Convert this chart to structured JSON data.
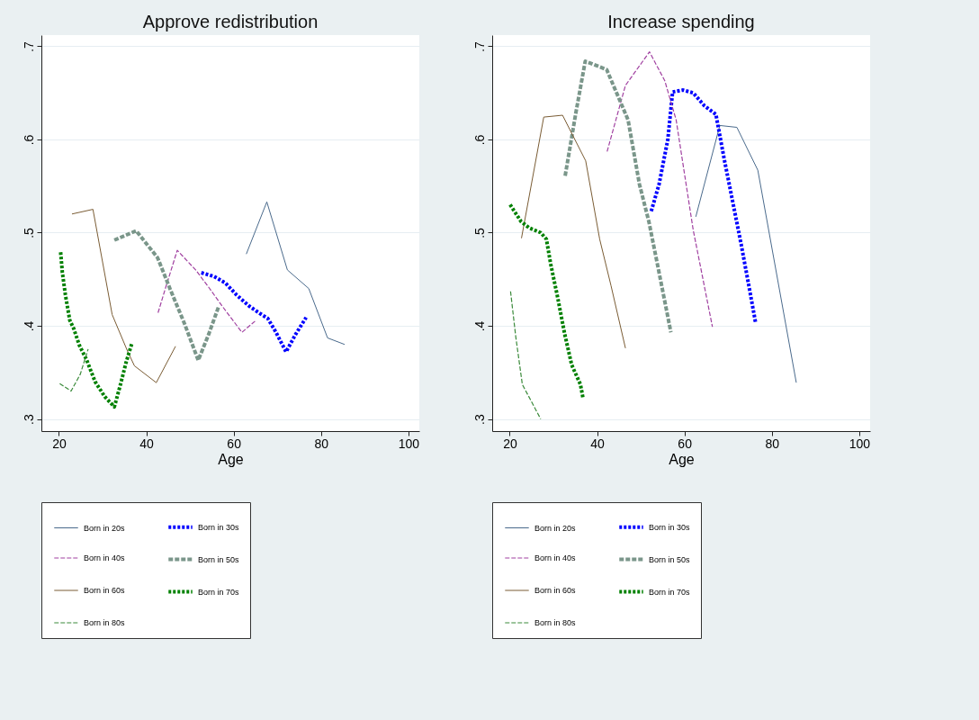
{
  "chart_data": [
    {
      "type": "line",
      "title": "Approve redistribution",
      "xlabel": "Age",
      "xlim": [
        16,
        102.5
      ],
      "xticks": [
        20,
        40,
        60,
        80,
        100
      ],
      "ylim": [
        0.287,
        0.712
      ],
      "yticks": [
        {
          "value": 0.3,
          "label": ".3"
        },
        {
          "value": 0.4,
          "label": ".4"
        },
        {
          "value": 0.5,
          "label": ".5"
        },
        {
          "value": 0.6,
          "label": ".6"
        },
        {
          "value": 0.7,
          "label": ".7"
        }
      ],
      "grid": "y",
      "legend": "bottom",
      "series": [
        {
          "name": "Born in 20s",
          "color": "#4a6a8c",
          "line_style": "solid",
          "x": [
            62.9,
            67.6,
            72.3,
            77.2,
            81.5,
            85.4
          ],
          "values": [
            0.477,
            0.533,
            0.46,
            0.44,
            0.387,
            0.38
          ]
        },
        {
          "name": "Born in 30s",
          "color": "#0000ff",
          "line_style": "dotted",
          "x": [
            52.6,
            55.5,
            58.1,
            60.7,
            63.6,
            66.1,
            67.8,
            69.7,
            72.0,
            74.2,
            76.6
          ],
          "values": [
            0.457,
            0.453,
            0.446,
            0.433,
            0.421,
            0.413,
            0.408,
            0.393,
            0.372,
            0.391,
            0.409
          ]
        },
        {
          "name": "Born in 40s",
          "color": "#a040a0",
          "line_style": "dashed",
          "x": [
            42.7,
            44.5,
            47.1,
            51.3,
            54.2,
            57.4,
            61.9,
            64.9
          ],
          "values": [
            0.414,
            0.442,
            0.481,
            0.46,
            0.442,
            0.421,
            0.393,
            0.405
          ]
        },
        {
          "name": "Born in 50s",
          "color": "#7a968a",
          "line_style": "dashed",
          "x": [
            32.7,
            37.7,
            42.6,
            45.5,
            48.7,
            51.9,
            54.3,
            56.6
          ],
          "values": [
            0.492,
            0.502,
            0.473,
            0.439,
            0.403,
            0.363,
            0.391,
            0.421
          ]
        },
        {
          "name": "Born in 60s",
          "color": "#7a5c34",
          "line_style": "solid",
          "x": [
            23.0,
            27.8,
            32.2,
            35.7,
            37.3,
            42.3,
            46.7
          ],
          "values": [
            0.52,
            0.525,
            0.412,
            0.373,
            0.357,
            0.339,
            0.378
          ]
        },
        {
          "name": "Born in 70s",
          "color": "#008000",
          "line_style": "dotted",
          "x": [
            20.4,
            20.8,
            21.5,
            22.5,
            23.4,
            24.7,
            26.3,
            28.3,
            30.5,
            32.7,
            34.1,
            35.4,
            36.7
          ],
          "values": [
            0.479,
            0.457,
            0.433,
            0.406,
            0.397,
            0.379,
            0.364,
            0.34,
            0.324,
            0.313,
            0.337,
            0.361,
            0.381
          ]
        },
        {
          "name": "Born in 80s",
          "color": "#3a8a3a",
          "line_style": "dashed",
          "x": [
            20.2,
            22.8,
            24.9,
            26.7
          ],
          "values": [
            0.338,
            0.33,
            0.348,
            0.375
          ]
        }
      ]
    },
    {
      "type": "line",
      "title": "Increase spending",
      "xlabel": "Age",
      "xlim": [
        16,
        102.5
      ],
      "xticks": [
        20,
        40,
        60,
        80,
        100
      ],
      "ylim": [
        0.287,
        0.712
      ],
      "yticks": [
        {
          "value": 0.3,
          "label": ".3"
        },
        {
          "value": 0.4,
          "label": ".4"
        },
        {
          "value": 0.5,
          "label": ".5"
        },
        {
          "value": 0.6,
          "label": ".6"
        },
        {
          "value": 0.7,
          "label": ".7"
        }
      ],
      "grid": "y",
      "legend": "bottom",
      "series": [
        {
          "name": "Born in 20s",
          "color": "#4a6a8c",
          "line_style": "solid",
          "x": [
            62.6,
            68.1,
            72.0,
            76.8,
            85.6
          ],
          "values": [
            0.517,
            0.615,
            0.613,
            0.567,
            0.339
          ]
        },
        {
          "name": "Born in 30s",
          "color": "#0000ff",
          "line_style": "dotted",
          "x": [
            52.4,
            54.2,
            56.2,
            57.3,
            59.7,
            62.0,
            64.6,
            67.2,
            69.1,
            71.1,
            73.0,
            74.9,
            76.3
          ],
          "values": [
            0.523,
            0.552,
            0.6,
            0.651,
            0.653,
            0.65,
            0.636,
            0.627,
            0.579,
            0.532,
            0.487,
            0.439,
            0.403
          ]
        },
        {
          "name": "Born in 40s",
          "color": "#a040a0",
          "line_style": "dashed",
          "x": [
            42.3,
            46.5,
            52.0,
            55.5,
            58.1,
            62.0,
            66.4
          ],
          "values": [
            0.587,
            0.658,
            0.694,
            0.663,
            0.621,
            0.503,
            0.399
          ]
        },
        {
          "name": "Born in 50s",
          "color": "#7a968a",
          "line_style": "dashed",
          "x": [
            32.7,
            35.2,
            37.3,
            42.2,
            47.1,
            49.7,
            51.9,
            54.2,
            56.9
          ],
          "values": [
            0.561,
            0.63,
            0.684,
            0.675,
            0.621,
            0.552,
            0.511,
            0.457,
            0.393
          ]
        },
        {
          "name": "Born in 60s",
          "color": "#7a5c34",
          "line_style": "solid",
          "x": [
            22.7,
            27.8,
            32.1,
            37.4,
            40.6,
            43.2,
            46.5
          ],
          "values": [
            0.494,
            0.624,
            0.626,
            0.577,
            0.493,
            0.443,
            0.376
          ]
        },
        {
          "name": "Born in 70s",
          "color": "#008000",
          "line_style": "dotted",
          "x": [
            20.1,
            22.6,
            24.5,
            27.1,
            28.4,
            29.4,
            31.0,
            32.6,
            34.2,
            36.2,
            36.8
          ],
          "values": [
            0.53,
            0.512,
            0.505,
            0.5,
            0.493,
            0.466,
            0.43,
            0.391,
            0.358,
            0.337,
            0.322
          ]
        },
        {
          "name": "Born in 80s",
          "color": "#3a8a3a",
          "line_style": "dashed",
          "x": [
            20.2,
            21.4,
            22.9,
            27.1
          ],
          "values": [
            0.437,
            0.388,
            0.337,
            0.3
          ]
        }
      ]
    }
  ]
}
